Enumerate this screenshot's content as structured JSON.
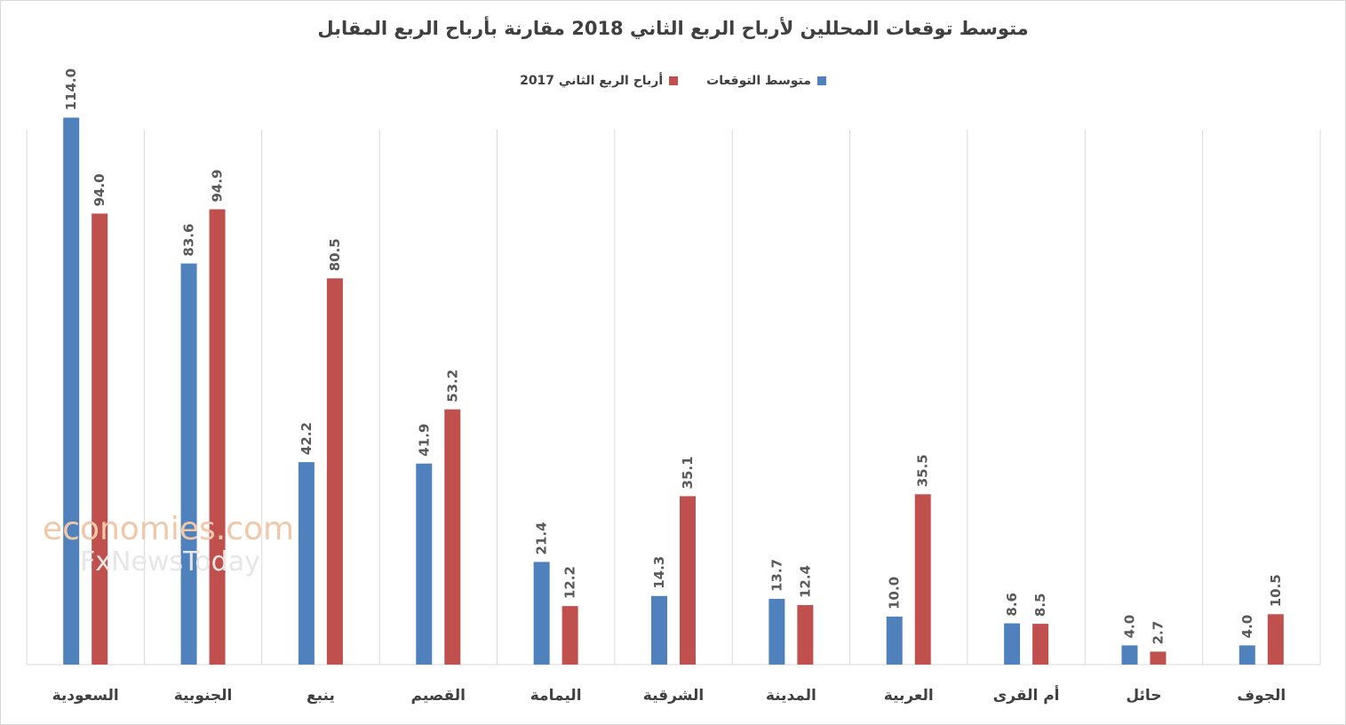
{
  "chart_data": {
    "type": "bar",
    "title": "متوسط توقعات المحللين لأرباح الربع الثاني 2018 مقارنة بأرباح الربع المقابل",
    "categories": [
      "السعودية",
      "الجنوبية",
      "ينبع",
      "القصيم",
      "اليمامة",
      "الشرقية",
      "المدينة",
      "العربية",
      "أم القرى",
      "حائل",
      "الجوف"
    ],
    "series": [
      {
        "name": "متوسط التوقعات",
        "color": "#4f81bd",
        "values": [
          114.0,
          83.6,
          42.2,
          41.9,
          21.4,
          14.3,
          13.7,
          10.0,
          8.6,
          4.0,
          4.0
        ]
      },
      {
        "name": "أرباح الربع الثاني 2017",
        "color": "#c0504d",
        "values": [
          94.0,
          94.9,
          80.5,
          53.2,
          12.2,
          35.1,
          12.4,
          35.5,
          8.5,
          2.7,
          10.5
        ]
      }
    ],
    "ylim": [
      0,
      120
    ],
    "grid": "vertical category separators",
    "legend_position": "top",
    "data_labels": "rotated vertical above bars"
  },
  "watermark": {
    "line1": "economies.com",
    "line2": "FxNewsToday"
  }
}
